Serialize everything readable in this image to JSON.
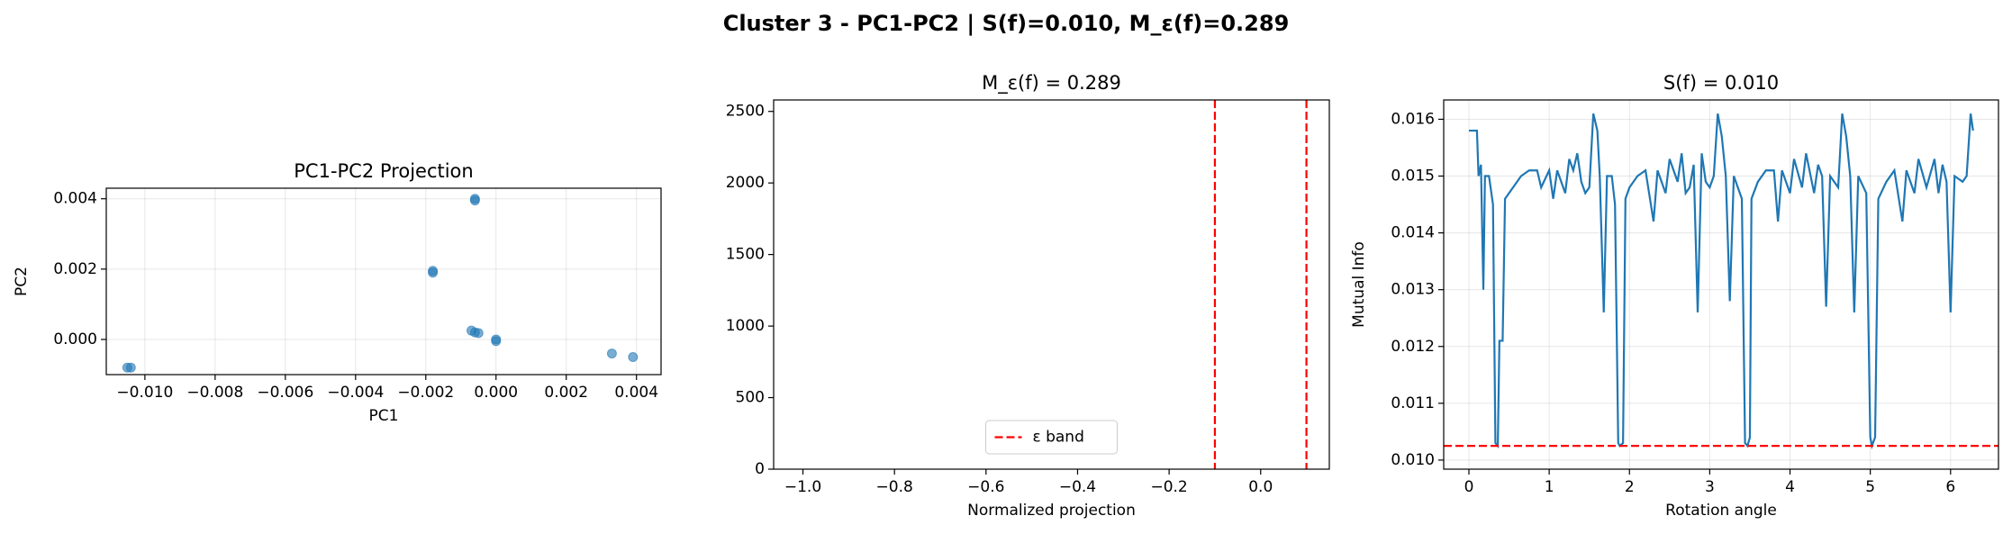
{
  "title": "Cluster 3 - PC1-PC2 | S(f)=0.010, M_ε(f)=0.289",
  "chart_data": [
    {
      "type": "scatter",
      "title": "PC1-PC2 Projection",
      "xlabel": "PC1",
      "ylabel": "PC2",
      "color": "#1f77b4",
      "grid": true,
      "xlim": [
        -0.0111,
        0.0047
      ],
      "ylim": [
        -0.001,
        0.0043
      ],
      "xticks": [
        {
          "value": -0.01,
          "label": "−0.010"
        },
        {
          "value": -0.008,
          "label": "−0.008"
        },
        {
          "value": -0.006,
          "label": "−0.006"
        },
        {
          "value": -0.004,
          "label": "−0.004"
        },
        {
          "value": -0.002,
          "label": "−0.002"
        },
        {
          "value": 0,
          "label": "0.000"
        },
        {
          "value": 0.002,
          "label": "0.002"
        },
        {
          "value": 0.004,
          "label": "0.004"
        }
      ],
      "yticks": [
        {
          "value": 0,
          "label": "0.000"
        },
        {
          "value": 0.002,
          "label": "0.002"
        },
        {
          "value": 0.004,
          "label": "0.004"
        }
      ],
      "x": [
        -0.0104,
        -0.0105,
        -0.0018,
        -0.0018,
        -0.0006,
        -0.0006,
        -0.0007,
        -0.0006,
        -0.0005,
        0.0,
        0.0,
        0.0033,
        0.0039
      ],
      "values": [
        -0.0008,
        -0.0008,
        0.0019,
        0.00195,
        0.004,
        0.00395,
        0.00025,
        0.0002,
        0.00018,
        0.0,
        -5e-05,
        -0.0004,
        -0.0005
      ]
    },
    {
      "type": "line",
      "title": "M_ε(f) = 0.289",
      "xlabel": "Normalized projection",
      "grid": false,
      "xlim": [
        -1.064,
        0.15
      ],
      "ylim": [
        0,
        2580
      ],
      "xticks": [
        {
          "value": -1.0,
          "label": "−1.0"
        },
        {
          "value": -0.8,
          "label": "−0.8"
        },
        {
          "value": -0.6,
          "label": "−0.6"
        },
        {
          "value": -0.4,
          "label": "−0.4"
        },
        {
          "value": -0.2,
          "label": "−0.2"
        },
        {
          "value": 0,
          "label": "0.0"
        }
      ],
      "yticks": [
        0,
        500,
        1000,
        1500,
        2000,
        2500
      ],
      "reference_lines": {
        "name": "ε band",
        "orientation": "vertical",
        "color": "#ff0000",
        "values": [
          -0.1,
          0.1
        ]
      },
      "legend": "lower center"
    },
    {
      "type": "line",
      "title": "S(f) = 0.010",
      "xlabel": "Rotation angle",
      "ylabel": "Mutual Info",
      "color": "#1f77b4",
      "grid": true,
      "xlim": [
        -0.314,
        6.597
      ],
      "ylim": [
        0.00984,
        0.01634
      ],
      "xticks": [
        0,
        1,
        2,
        3,
        4,
        5,
        6
      ],
      "yticks": [
        {
          "value": 0.01,
          "label": "0.010"
        },
        {
          "value": 0.011,
          "label": "0.011"
        },
        {
          "value": 0.012,
          "label": "0.012"
        },
        {
          "value": 0.013,
          "label": "0.013"
        },
        {
          "value": 0.014,
          "label": "0.014"
        },
        {
          "value": 0.015,
          "label": "0.015"
        },
        {
          "value": 0.016,
          "label": "0.016"
        }
      ],
      "x": [
        0,
        0.1,
        0.12,
        0.15,
        0.18,
        0.2,
        0.25,
        0.3,
        0.33,
        0.36,
        0.38,
        0.42,
        0.45,
        0.55,
        0.65,
        0.75,
        0.85,
        0.9,
        1.0,
        1.05,
        1.1,
        1.2,
        1.25,
        1.3,
        1.35,
        1.4,
        1.45,
        1.5,
        1.55,
        1.6,
        1.63,
        1.68,
        1.72,
        1.78,
        1.82,
        1.86,
        1.88,
        1.92,
        1.95,
        2.0,
        2.1,
        2.2,
        2.3,
        2.35,
        2.45,
        2.5,
        2.6,
        2.65,
        2.7,
        2.75,
        2.8,
        2.85,
        2.9,
        2.95,
        3.0,
        3.05,
        3.1,
        3.15,
        3.2,
        3.25,
        3.3,
        3.4,
        3.44,
        3.47,
        3.5,
        3.52,
        3.6,
        3.7,
        3.8,
        3.85,
        3.9,
        4.0,
        4.05,
        4.15,
        4.2,
        4.3,
        4.35,
        4.4,
        4.45,
        4.5,
        4.6,
        4.65,
        4.7,
        4.75,
        4.8,
        4.85,
        4.95,
        5.0,
        5.02,
        5.06,
        5.1,
        5.2,
        5.3,
        5.4,
        5.45,
        5.55,
        5.6,
        5.7,
        5.8,
        5.85,
        5.9,
        5.95,
        6.0,
        6.05,
        6.15,
        6.2,
        6.25,
        6.28
      ],
      "values": [
        0.0158,
        0.0158,
        0.015,
        0.0152,
        0.013,
        0.015,
        0.015,
        0.0145,
        0.0103,
        0.01025,
        0.0121,
        0.0121,
        0.0146,
        0.0148,
        0.015,
        0.0151,
        0.0151,
        0.0148,
        0.0151,
        0.0146,
        0.0151,
        0.0147,
        0.0153,
        0.0151,
        0.0154,
        0.0149,
        0.0147,
        0.0148,
        0.0161,
        0.0158,
        0.015,
        0.0126,
        0.015,
        0.015,
        0.0145,
        0.0103,
        0.01025,
        0.0103,
        0.0146,
        0.0148,
        0.015,
        0.0151,
        0.0142,
        0.0151,
        0.0147,
        0.0153,
        0.0149,
        0.0154,
        0.0147,
        0.0148,
        0.0152,
        0.0126,
        0.0154,
        0.0149,
        0.0148,
        0.015,
        0.0161,
        0.0157,
        0.015,
        0.0128,
        0.015,
        0.0146,
        0.0103,
        0.01025,
        0.0104,
        0.0146,
        0.0149,
        0.0151,
        0.0151,
        0.0142,
        0.0151,
        0.0147,
        0.0153,
        0.0148,
        0.0154,
        0.0147,
        0.0152,
        0.015,
        0.0127,
        0.015,
        0.0148,
        0.0161,
        0.0157,
        0.015,
        0.0126,
        0.015,
        0.0147,
        0.0104,
        0.01025,
        0.0104,
        0.0146,
        0.0149,
        0.0151,
        0.0142,
        0.0151,
        0.0147,
        0.0153,
        0.0148,
        0.0153,
        0.0147,
        0.0152,
        0.0149,
        0.0126,
        0.015,
        0.0149,
        0.015,
        0.0161,
        0.0158
      ],
      "reference_lines": {
        "orientation": "horizontal",
        "color": "#ff0000",
        "values": [
          0.01025
        ]
      }
    }
  ]
}
